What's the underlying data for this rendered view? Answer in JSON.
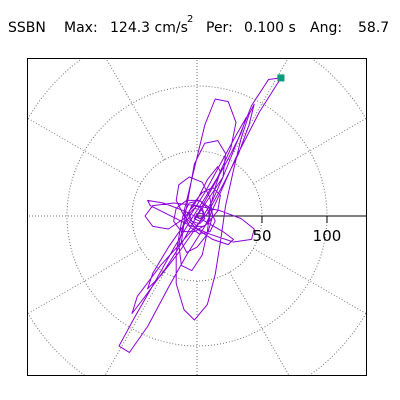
{
  "header": {
    "station": "SSBN",
    "max_label": "Max:",
    "max_value": "124.3 cm/s",
    "max_exp": "2",
    "per_label": "Per:",
    "per_value": "0.100 s",
    "ang_label": "Ang:",
    "ang_value": "58.7"
  },
  "chart_data": {
    "type": "line",
    "title": "",
    "polar_grid": {
      "rings": [
        50,
        100,
        150
      ],
      "spokes_deg": [
        0,
        30,
        60,
        90,
        120,
        150,
        180,
        210,
        240,
        270,
        300,
        330
      ]
    },
    "axis_ticks": [
      {
        "value": 50,
        "label": "50"
      },
      {
        "value": 100,
        "label": "100"
      }
    ],
    "xlim": [
      -150,
      150
    ],
    "ylim": [
      -150,
      150
    ],
    "grid": true,
    "peak": {
      "value": 124.3,
      "angle_deg": 58.7
    },
    "series": [
      {
        "color": "#8c00d8",
        "values": [
          [
            0,
            0
          ],
          [
            8,
            12
          ],
          [
            20,
            30
          ],
          [
            30,
            55
          ],
          [
            42,
            85
          ],
          [
            55,
            105
          ],
          [
            64.6,
            106.2
          ],
          [
            48,
            80
          ],
          [
            30,
            45
          ],
          [
            18,
            18
          ],
          [
            6,
            -8
          ],
          [
            -8,
            -30
          ],
          [
            -22,
            -55
          ],
          [
            -38,
            -85
          ],
          [
            -52,
            -105
          ],
          [
            -60,
            -100
          ],
          [
            -48,
            -78
          ],
          [
            -32,
            -50
          ],
          [
            -18,
            -25
          ],
          [
            -6,
            -5
          ],
          [
            5,
            12
          ],
          [
            16,
            30
          ],
          [
            26,
            52
          ],
          [
            30,
            72
          ],
          [
            24,
            88
          ],
          [
            14,
            90
          ],
          [
            6,
            70
          ],
          [
            0,
            45
          ],
          [
            -6,
            20
          ],
          [
            -12,
            -5
          ],
          [
            -16,
            -28
          ],
          [
            -16,
            -52
          ],
          [
            -10,
            -72
          ],
          [
            -2,
            -80
          ],
          [
            8,
            -68
          ],
          [
            14,
            -45
          ],
          [
            18,
            -20
          ],
          [
            22,
            8
          ],
          [
            28,
            35
          ],
          [
            34,
            60
          ],
          [
            40,
            78
          ],
          [
            44,
            86
          ],
          [
            40,
            70
          ],
          [
            32,
            48
          ],
          [
            20,
            24
          ],
          [
            8,
            2
          ],
          [
            -10,
            -18
          ],
          [
            -28,
            -38
          ],
          [
            -46,
            -62
          ],
          [
            -50,
            -75
          ],
          [
            -40,
            -62
          ],
          [
            -24,
            -40
          ],
          [
            -10,
            -18
          ],
          [
            2,
            4
          ],
          [
            12,
            22
          ],
          [
            24,
            44
          ],
          [
            34,
            64
          ],
          [
            38,
            76
          ],
          [
            30,
            62
          ],
          [
            18,
            40
          ],
          [
            6,
            18
          ],
          [
            -8,
            -4
          ],
          [
            -22,
            -24
          ],
          [
            -34,
            -44
          ],
          [
            -38,
            -56
          ],
          [
            -28,
            -46
          ],
          [
            -14,
            -28
          ],
          [
            0,
            -8
          ],
          [
            12,
            12
          ],
          [
            20,
            30
          ],
          [
            22,
            48
          ],
          [
            16,
            58
          ],
          [
            6,
            56
          ],
          [
            -2,
            40
          ],
          [
            -6,
            18
          ],
          [
            -10,
            -4
          ],
          [
            -14,
            -22
          ],
          [
            -12,
            -38
          ],
          [
            -4,
            -42
          ],
          [
            4,
            -30
          ],
          [
            8,
            -12
          ],
          [
            10,
            6
          ],
          [
            14,
            22
          ],
          [
            18,
            34
          ],
          [
            16,
            38
          ],
          [
            8,
            28
          ],
          [
            0,
            12
          ],
          [
            -10,
            -2
          ],
          [
            -22,
            -10
          ],
          [
            -34,
            -8
          ],
          [
            -40,
            0
          ],
          [
            -34,
            8
          ],
          [
            -18,
            10
          ],
          [
            0,
            8
          ],
          [
            18,
            4
          ],
          [
            34,
            -2
          ],
          [
            44,
            -10
          ],
          [
            42,
            -18
          ],
          [
            28,
            -20
          ],
          [
            10,
            -14
          ],
          [
            -8,
            -6
          ],
          [
            -24,
            2
          ],
          [
            -36,
            8
          ],
          [
            -38,
            12
          ],
          [
            -26,
            10
          ],
          [
            -10,
            4
          ],
          [
            6,
            -4
          ],
          [
            20,
            -12
          ],
          [
            28,
            -18
          ],
          [
            24,
            -22
          ],
          [
            12,
            -18
          ],
          [
            0,
            -10
          ],
          [
            -10,
            0
          ],
          [
            -16,
            12
          ],
          [
            -14,
            24
          ],
          [
            -6,
            30
          ],
          [
            4,
            26
          ],
          [
            10,
            14
          ],
          [
            12,
            0
          ],
          [
            8,
            -14
          ],
          [
            0,
            -24
          ],
          [
            -8,
            -28
          ],
          [
            -12,
            -20
          ],
          [
            -10,
            -6
          ],
          [
            -4,
            8
          ],
          [
            4,
            18
          ],
          [
            12,
            22
          ],
          [
            18,
            16
          ],
          [
            16,
            4
          ],
          [
            8,
            -6
          ],
          [
            -2,
            -12
          ],
          [
            -12,
            -12
          ],
          [
            -18,
            -4
          ],
          [
            -16,
            6
          ],
          [
            -8,
            12
          ],
          [
            2,
            12
          ],
          [
            10,
            6
          ],
          [
            14,
            -4
          ],
          [
            10,
            -12
          ],
          [
            2,
            -14
          ],
          [
            -6,
            -8
          ],
          [
            -10,
            2
          ],
          [
            -6,
            10
          ],
          [
            2,
            12
          ],
          [
            8,
            6
          ],
          [
            10,
            -2
          ],
          [
            6,
            -8
          ],
          [
            0,
            -8
          ],
          [
            -6,
            -2
          ],
          [
            -6,
            4
          ],
          [
            -2,
            8
          ],
          [
            4,
            6
          ],
          [
            6,
            0
          ],
          [
            2,
            -4
          ],
          [
            -2,
            -2
          ],
          [
            0,
            2
          ],
          [
            4,
            2
          ],
          [
            6,
            -2
          ],
          [
            2,
            -6
          ],
          [
            -4,
            -4
          ],
          [
            -6,
            2
          ],
          [
            -2,
            6
          ],
          [
            4,
            4
          ],
          [
            6,
            0
          ],
          [
            2,
            -2
          ],
          [
            0,
            0
          ]
        ]
      }
    ]
  }
}
